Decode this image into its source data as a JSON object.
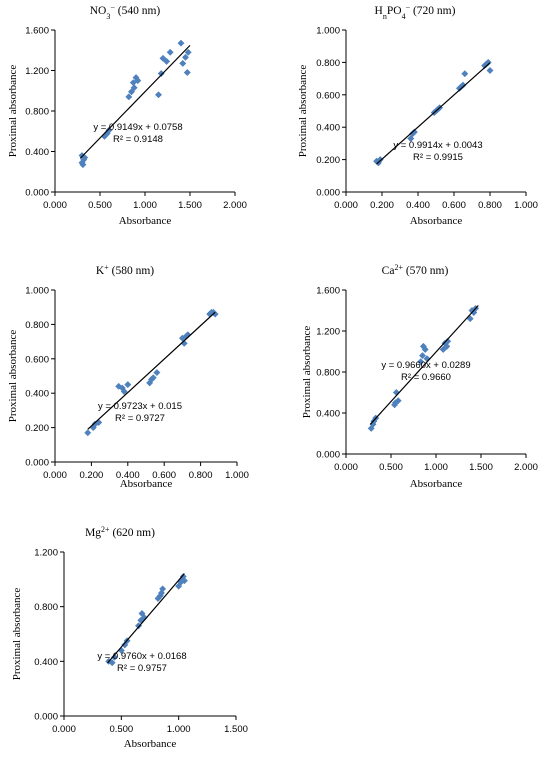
{
  "figure_title": "",
  "colors": {
    "points": "#4f81bd",
    "trendline": "#000000",
    "axes": "#000000"
  },
  "chart_data": [
    {
      "type": "scatter",
      "title_parts": [
        [
          "NO",
          "n"
        ],
        [
          "3",
          "sub"
        ],
        [
          "−",
          "sup"
        ],
        [
          " (540 nm)",
          "n"
        ]
      ],
      "xlabel": "Absorbance",
      "ylabel": "Proximal absorbance",
      "xlim": [
        0,
        2
      ],
      "ylim": [
        0,
        1.6
      ],
      "xticks": [
        "0.000",
        "0.500",
        "1.000",
        "1.500",
        "2.000"
      ],
      "yticks": [
        "0.000",
        "0.400",
        "0.800",
        "1.200",
        "1.600"
      ],
      "grid": false,
      "legend": "none",
      "equation": "y = 0.9149x + 0.0758",
      "r2": "R² = 0.9148",
      "trendline": {
        "slope": 0.9149,
        "intercept": 0.0758,
        "x_range": [
          0.28,
          1.5
        ]
      },
      "points": [
        [
          0.3,
          0.36
        ],
        [
          0.32,
          0.32
        ],
        [
          0.3,
          0.29
        ],
        [
          0.31,
          0.27
        ],
        [
          0.33,
          0.34
        ],
        [
          0.55,
          0.55
        ],
        [
          0.58,
          0.58
        ],
        [
          0.6,
          0.61
        ],
        [
          0.57,
          0.57
        ],
        [
          0.82,
          0.94
        ],
        [
          0.85,
          0.99
        ],
        [
          0.88,
          1.03
        ],
        [
          0.9,
          1.13
        ],
        [
          0.92,
          1.1
        ],
        [
          0.87,
          1.08
        ],
        [
          1.15,
          0.96
        ],
        [
          1.18,
          1.17
        ],
        [
          1.2,
          1.32
        ],
        [
          1.24,
          1.29
        ],
        [
          1.28,
          1.38
        ],
        [
          1.4,
          1.47
        ],
        [
          1.42,
          1.27
        ],
        [
          1.45,
          1.33
        ],
        [
          1.47,
          1.18
        ],
        [
          1.48,
          1.38
        ]
      ]
    },
    {
      "type": "scatter",
      "title_parts": [
        [
          "H",
          "n"
        ],
        [
          "n",
          "sub"
        ],
        [
          "PO",
          "n"
        ],
        [
          "4",
          "sub"
        ],
        [
          "−",
          "sup"
        ],
        [
          " (720 nm)",
          "n"
        ]
      ],
      "xlabel": "Absorbance",
      "ylabel": "Proximal absorbance",
      "xlim": [
        0,
        1
      ],
      "ylim": [
        0,
        1
      ],
      "xticks": [
        "0.000",
        "0.200",
        "0.400",
        "0.600",
        "0.800",
        "1.000"
      ],
      "yticks": [
        "0.000",
        "0.200",
        "0.400",
        "0.600",
        "0.800",
        "1.000"
      ],
      "grid": false,
      "legend": "none",
      "equation": "y = 0.9914x + 0.0043",
      "r2": "R² = 0.9915",
      "trendline": {
        "slope": 0.9914,
        "intercept": 0.0043,
        "x_range": [
          0.17,
          0.8
        ]
      },
      "points": [
        [
          0.17,
          0.19
        ],
        [
          0.18,
          0.18
        ],
        [
          0.19,
          0.2
        ],
        [
          0.36,
          0.33
        ],
        [
          0.37,
          0.36
        ],
        [
          0.38,
          0.37
        ],
        [
          0.49,
          0.49
        ],
        [
          0.5,
          0.5
        ],
        [
          0.51,
          0.51
        ],
        [
          0.52,
          0.52
        ],
        [
          0.63,
          0.64
        ],
        [
          0.64,
          0.65
        ],
        [
          0.65,
          0.66
        ],
        [
          0.66,
          0.73
        ],
        [
          0.77,
          0.78
        ],
        [
          0.78,
          0.79
        ],
        [
          0.79,
          0.8
        ],
        [
          0.8,
          0.75
        ]
      ]
    },
    {
      "type": "scatter",
      "title_parts": [
        [
          "K",
          "n"
        ],
        [
          "+",
          "sup"
        ],
        [
          " (580 nm)",
          "n"
        ]
      ],
      "xlabel": "Absorbance",
      "ylabel": "Proximal absorbance",
      "xlim": [
        0,
        1
      ],
      "ylim": [
        0,
        1
      ],
      "xticks": [
        "0.000",
        "0.200",
        "0.400",
        "0.600",
        "0.800",
        "1.000"
      ],
      "yticks": [
        "0.000",
        "0.200",
        "0.400",
        "0.600",
        "0.800",
        "1.000"
      ],
      "grid": false,
      "legend": "none",
      "equation": "y = 0.9723x + 0.015",
      "r2": "R² = 0.9727",
      "trendline": {
        "slope": 0.9723,
        "intercept": 0.015,
        "x_range": [
          0.18,
          0.88
        ]
      },
      "points": [
        [
          0.18,
          0.17
        ],
        [
          0.21,
          0.2
        ],
        [
          0.22,
          0.22
        ],
        [
          0.24,
          0.23
        ],
        [
          0.35,
          0.44
        ],
        [
          0.37,
          0.43
        ],
        [
          0.38,
          0.41
        ],
        [
          0.4,
          0.45
        ],
        [
          0.52,
          0.46
        ],
        [
          0.53,
          0.48
        ],
        [
          0.54,
          0.49
        ],
        [
          0.56,
          0.52
        ],
        [
          0.7,
          0.72
        ],
        [
          0.71,
          0.69
        ],
        [
          0.72,
          0.73
        ],
        [
          0.73,
          0.74
        ],
        [
          0.85,
          0.86
        ],
        [
          0.86,
          0.87
        ],
        [
          0.87,
          0.87
        ],
        [
          0.88,
          0.86
        ]
      ]
    },
    {
      "type": "scatter",
      "title_parts": [
        [
          "Ca",
          "n"
        ],
        [
          "2+",
          "sup"
        ],
        [
          " (570 nm)",
          "n"
        ]
      ],
      "xlabel": "Absorbance",
      "ylabel": "Proximal absorbance",
      "xlim": [
        0,
        2
      ],
      "ylim": [
        0,
        1.6
      ],
      "xticks": [
        "0.000",
        "0.500",
        "1.000",
        "1.500",
        "2.000"
      ],
      "yticks": [
        "0.000",
        "0.400",
        "0.800",
        "1.200",
        "1.600"
      ],
      "grid": false,
      "legend": "none",
      "equation": "y = 0.9660x + 0.0289",
      "r2": "R² = 0.9660",
      "trendline": {
        "slope": 0.966,
        "intercept": 0.0289,
        "x_range": [
          0.27,
          1.47
        ]
      },
      "points": [
        [
          0.28,
          0.25
        ],
        [
          0.3,
          0.29
        ],
        [
          0.31,
          0.32
        ],
        [
          0.33,
          0.35
        ],
        [
          0.54,
          0.48
        ],
        [
          0.55,
          0.5
        ],
        [
          0.56,
          0.6
        ],
        [
          0.58,
          0.52
        ],
        [
          0.83,
          0.9
        ],
        [
          0.85,
          0.96
        ],
        [
          0.86,
          1.05
        ],
        [
          0.88,
          1.02
        ],
        [
          0.9,
          0.93
        ],
        [
          1.08,
          1.02
        ],
        [
          1.1,
          1.08
        ],
        [
          1.12,
          1.05
        ],
        [
          1.13,
          1.1
        ],
        [
          1.38,
          1.32
        ],
        [
          1.4,
          1.4
        ],
        [
          1.42,
          1.38
        ],
        [
          1.44,
          1.42
        ]
      ]
    },
    {
      "type": "scatter",
      "title_parts": [
        [
          "Mg",
          "n"
        ],
        [
          "2+",
          "sup"
        ],
        [
          " (620 nm)",
          "n"
        ]
      ],
      "xlabel": "Absorbance",
      "ylabel": "Proximal absorbance",
      "xlim": [
        0,
        1.5
      ],
      "ylim": [
        0,
        1.2
      ],
      "xticks": [
        "0.000",
        "0.500",
        "1.000",
        "1.500"
      ],
      "yticks": [
        "0.000",
        "0.400",
        "0.800",
        "1.200"
      ],
      "grid": false,
      "legend": "none",
      "equation": "y = 0.9760x + 0.0168",
      "r2": "R² = 0.9757",
      "trendline": {
        "slope": 0.976,
        "intercept": 0.0168,
        "x_range": [
          0.38,
          1.05
        ]
      },
      "points": [
        [
          0.39,
          0.4
        ],
        [
          0.42,
          0.39
        ],
        [
          0.44,
          0.43
        ],
        [
          0.5,
          0.48
        ],
        [
          0.53,
          0.52
        ],
        [
          0.55,
          0.55
        ],
        [
          0.65,
          0.66
        ],
        [
          0.67,
          0.7
        ],
        [
          0.68,
          0.75
        ],
        [
          0.7,
          0.72
        ],
        [
          0.82,
          0.86
        ],
        [
          0.84,
          0.88
        ],
        [
          0.85,
          0.9
        ],
        [
          0.86,
          0.93
        ],
        [
          1.0,
          0.95
        ],
        [
          1.02,
          0.98
        ],
        [
          1.03,
          1.0
        ],
        [
          1.04,
          1.02
        ],
        [
          1.05,
          0.99
        ]
      ]
    }
  ]
}
